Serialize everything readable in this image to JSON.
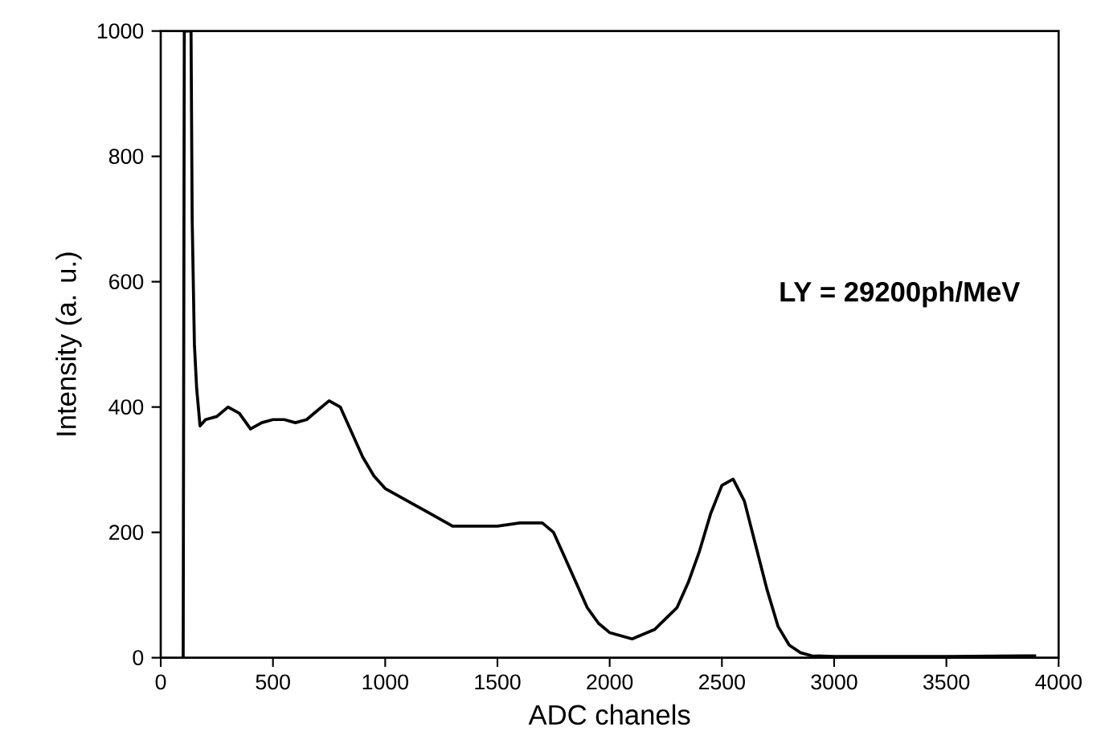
{
  "chart_data": {
    "type": "line",
    "xlabel": "ADC chanels",
    "ylabel": "Intensity (a. u.)",
    "annotations": [
      "**LY =  29200ph/MeV**"
    ],
    "xlim": [
      0,
      4000
    ],
    "ylim": [
      0,
      1000
    ],
    "xticks": [
      0,
      500,
      1000,
      1500,
      2000,
      2500,
      3000,
      3500,
      4000
    ],
    "yticks": [
      0,
      200,
      400,
      600,
      800,
      1000
    ],
    "grid": false,
    "marker": "none",
    "line_style": "solid",
    "series": [
      {
        "color": "#000000",
        "x": [
          100,
          105,
          135,
          140,
          150,
          160,
          175,
          200,
          250,
          300,
          350,
          400,
          450,
          500,
          550,
          600,
          650,
          700,
          750,
          800,
          850,
          900,
          950,
          1000,
          1100,
          1200,
          1300,
          1400,
          1500,
          1600,
          1700,
          1750,
          1800,
          1850,
          1900,
          1950,
          2000,
          2100,
          2200,
          2300,
          2350,
          2400,
          2450,
          2500,
          2550,
          2600,
          2650,
          2700,
          2750,
          2800,
          2850,
          2900,
          3000,
          3500,
          3900
        ],
        "values": [
          0,
          1000,
          1000,
          700,
          500,
          430,
          370,
          380,
          385,
          400,
          390,
          365,
          375,
          380,
          380,
          375,
          380,
          395,
          410,
          400,
          360,
          320,
          290,
          270,
          250,
          230,
          210,
          210,
          210,
          215,
          215,
          200,
          160,
          120,
          80,
          55,
          40,
          30,
          45,
          80,
          120,
          170,
          230,
          275,
          285,
          250,
          180,
          110,
          50,
          20,
          8,
          3,
          2,
          2,
          3
        ]
      }
    ]
  }
}
